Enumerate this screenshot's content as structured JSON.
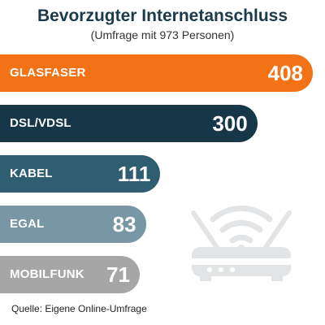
{
  "chart_data": {
    "type": "bar",
    "orientation": "horizontal",
    "title": "Bevorzugter Internetanschluss",
    "subtitle": "(Umfrage mit 973 Personen)",
    "categories": [
      "GLASFASER",
      "DSL/VDSL",
      "KABEL",
      "EGAL",
      "MOBILFUNK"
    ],
    "values": [
      408,
      300,
      111,
      83,
      71
    ],
    "colors": [
      "#f47216",
      "#163748",
      "#2f5e72",
      "#7896a3",
      "#a6a6a6"
    ],
    "source": "Quelle: Eigene Online-Umfrage",
    "grid": false,
    "legend": "none"
  },
  "decoration": {
    "icon": "wifi-router-icon"
  }
}
